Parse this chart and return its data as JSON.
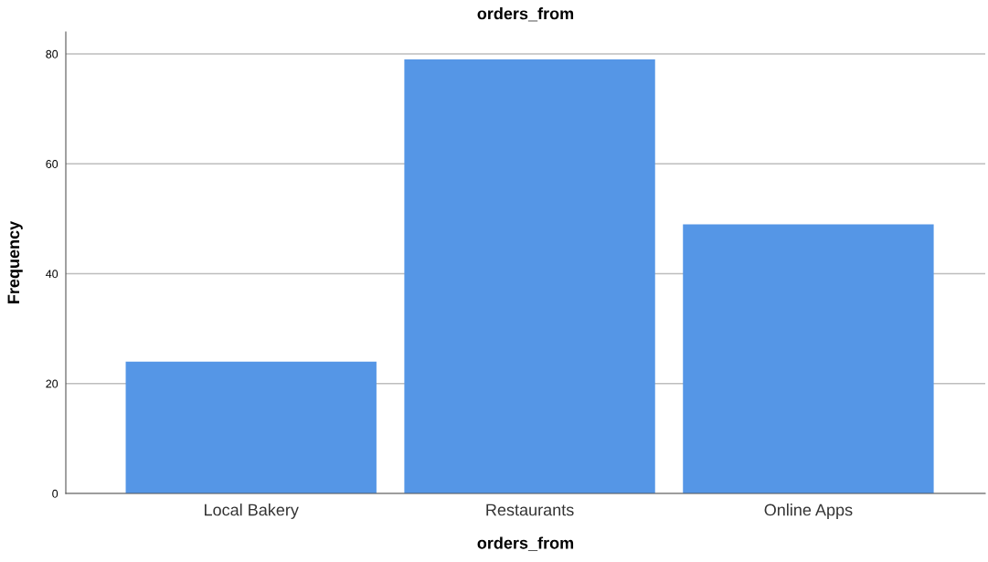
{
  "chart_data": {
    "type": "bar",
    "title": "orders_from",
    "xlabel": "orders_from",
    "ylabel": "Frequency",
    "categories": [
      "Local Bakery",
      "Restaurants",
      "Online Apps"
    ],
    "values": [
      24,
      79,
      49
    ],
    "color": "#5596e6",
    "ylim": [
      0,
      84
    ],
    "yticks": [
      0,
      20,
      40,
      60,
      80
    ],
    "grid": "y"
  }
}
